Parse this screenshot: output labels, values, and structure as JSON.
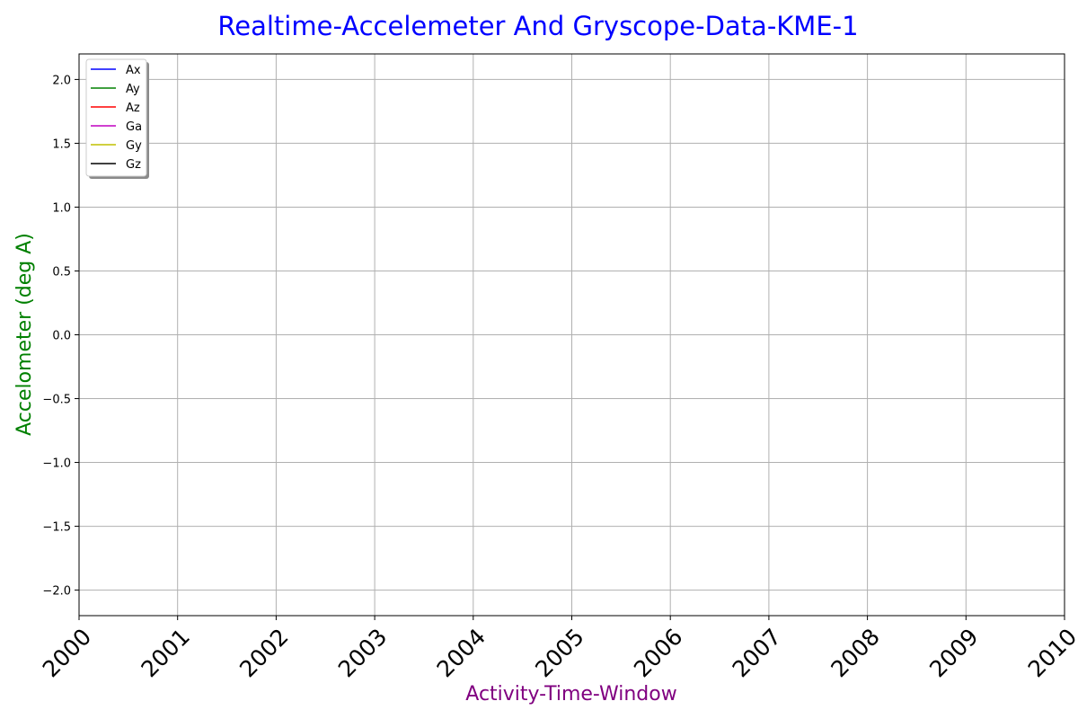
{
  "chart_data": {
    "type": "line",
    "title": "Realtime-Accelemeter And Gryscope-Data-KME-1",
    "xlabel": "Activity-Time-Window",
    "ylabel": "Accelometer (deg A)",
    "x_ticks": [
      "2000",
      "2001",
      "2002",
      "2003",
      "2004",
      "2005",
      "2006",
      "2007",
      "2008",
      "2009",
      "2010"
    ],
    "xlim": [
      2000,
      2010
    ],
    "y_ticks": [
      "2.0",
      "1.5",
      "1.0",
      "0.5",
      "0.0",
      "−0.5",
      "−1.0",
      "−1.5",
      "−2.0"
    ],
    "y_tick_values": [
      2.0,
      1.5,
      1.0,
      0.5,
      0.0,
      -0.5,
      -1.0,
      -1.5,
      -2.0
    ],
    "ylim": [
      -2.2,
      2.2
    ],
    "grid": true,
    "legend_position": "top-left",
    "series": [
      {
        "name": "Ax",
        "color": "#0000ff",
        "values": []
      },
      {
        "name": "Ay",
        "color": "#008000",
        "values": []
      },
      {
        "name": "Az",
        "color": "#ff0000",
        "values": []
      },
      {
        "name": "Ga",
        "color": "#c000c0",
        "values": []
      },
      {
        "name": "Gy",
        "color": "#c0c000",
        "values": []
      },
      {
        "name": "Gz",
        "color": "#000000",
        "values": []
      }
    ],
    "title_color": "#0000ff",
    "xlabel_color": "#800080",
    "ylabel_color": "#008000"
  }
}
